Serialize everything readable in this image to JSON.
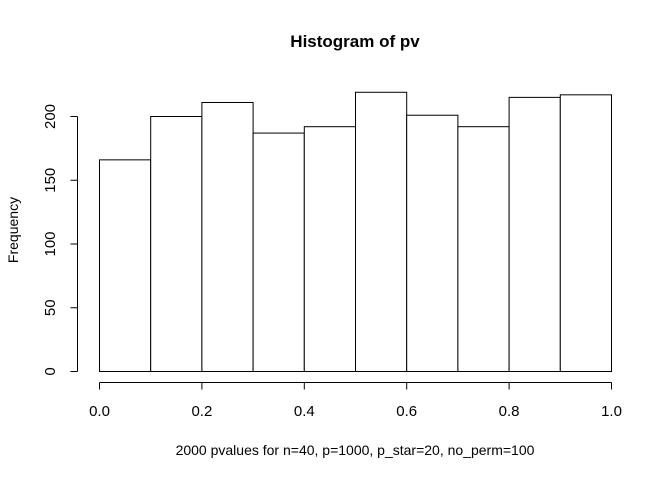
{
  "chart_data": {
    "type": "bar",
    "title": "Histogram of pv",
    "xlabel": "2000 pvalues for n=40, p=1000, p_star=20, no_perm=100",
    "ylabel": "Frequency",
    "bin_edges": [
      0.0,
      0.1,
      0.2,
      0.3,
      0.4,
      0.5,
      0.6,
      0.7,
      0.8,
      0.9,
      1.0
    ],
    "values": [
      166,
      200,
      211,
      187,
      192,
      219,
      201,
      192,
      215,
      217
    ],
    "xlim": [
      0.0,
      1.0
    ],
    "ylim": [
      0,
      225
    ],
    "x_ticks": [
      0.0,
      0.2,
      0.4,
      0.6,
      0.8,
      1.0
    ],
    "x_tick_labels": [
      "0.0",
      "0.2",
      "0.4",
      "0.6",
      "0.8",
      "1.0"
    ],
    "y_ticks": [
      0,
      50,
      100,
      150,
      200
    ],
    "y_tick_labels": [
      "0",
      "50",
      "100",
      "150",
      "200"
    ],
    "grid": false,
    "bar_fill": "#ffffff",
    "bar_stroke": "#000000"
  }
}
